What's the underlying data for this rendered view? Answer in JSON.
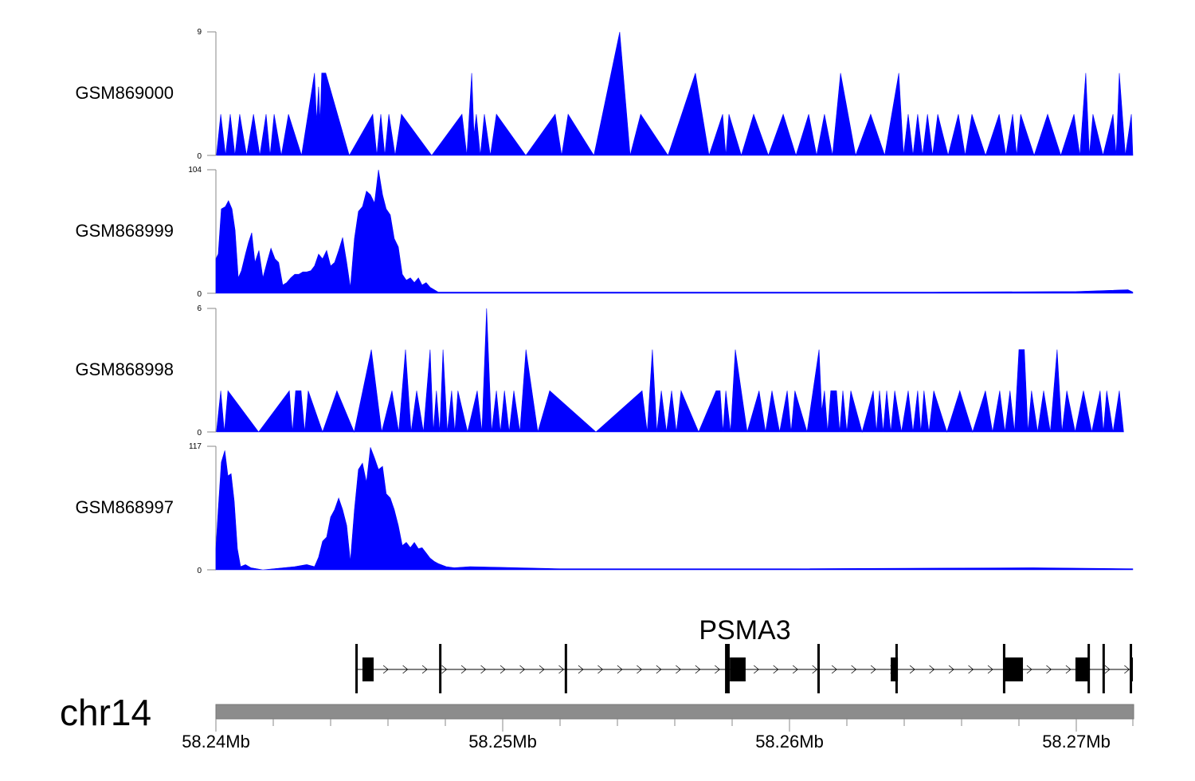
{
  "chart_data": {
    "type": "area",
    "x_origin_mb": 58.24,
    "x_unit": "kb offset from 58.24Mb",
    "xlim_kb": [
      0,
      32
    ],
    "fill_color": "#0000ff",
    "tracks": [
      {
        "name": "GSM869000",
        "ylim": [
          0,
          9
        ],
        "yticks": [
          "0",
          "9"
        ],
        "style": "peaks",
        "peaks": [
          [
            0.17,
            3
          ],
          [
            0.5,
            3
          ],
          [
            0.83,
            3
          ],
          [
            1.31,
            3
          ],
          [
            1.75,
            3
          ],
          [
            2.03,
            3
          ],
          [
            2.53,
            3
          ],
          [
            3.44,
            6
          ],
          [
            3.58,
            5
          ],
          [
            3.69,
            6
          ],
          [
            3.83,
            6
          ],
          [
            5.47,
            3
          ],
          [
            5.75,
            3
          ],
          [
            6.03,
            3
          ],
          [
            6.47,
            3
          ],
          [
            8.58,
            3
          ],
          [
            8.92,
            6
          ],
          [
            9.08,
            3
          ],
          [
            9.36,
            3
          ],
          [
            9.78,
            3
          ],
          [
            11.83,
            3
          ],
          [
            12.28,
            3
          ],
          [
            14.08,
            9
          ],
          [
            14.81,
            3
          ],
          [
            16.72,
            6
          ],
          [
            17.67,
            3
          ],
          [
            17.89,
            3
          ],
          [
            18.75,
            3
          ],
          [
            19.78,
            3
          ],
          [
            20.67,
            3
          ],
          [
            21.22,
            3
          ],
          [
            21.78,
            6
          ],
          [
            22.83,
            3
          ],
          [
            23.81,
            6
          ],
          [
            24.14,
            3
          ],
          [
            24.47,
            3
          ],
          [
            24.81,
            3
          ],
          [
            25.17,
            3
          ],
          [
            25.89,
            3
          ],
          [
            26.36,
            3
          ],
          [
            27.31,
            3
          ],
          [
            27.78,
            3
          ],
          [
            28.06,
            3
          ],
          [
            29.0,
            3
          ],
          [
            29.92,
            3
          ],
          [
            30.33,
            6
          ],
          [
            30.58,
            3
          ],
          [
            31.28,
            3
          ],
          [
            31.5,
            6
          ],
          [
            31.92,
            3
          ]
        ]
      },
      {
        "name": "GSM868999",
        "ylim": [
          0,
          104
        ],
        "yticks": [
          "0",
          "104"
        ],
        "style": "profile",
        "points": [
          [
            0,
            29
          ],
          [
            0.08,
            33
          ],
          [
            0.19,
            71
          ],
          [
            0.33,
            73
          ],
          [
            0.44,
            78
          ],
          [
            0.56,
            71
          ],
          [
            0.67,
            53
          ],
          [
            0.78,
            13
          ],
          [
            0.89,
            19
          ],
          [
            1.03,
            33
          ],
          [
            1.14,
            43
          ],
          [
            1.25,
            51
          ],
          [
            1.36,
            26
          ],
          [
            1.5,
            36
          ],
          [
            1.64,
            13
          ],
          [
            1.78,
            26
          ],
          [
            1.92,
            38
          ],
          [
            2.06,
            29
          ],
          [
            2.19,
            26
          ],
          [
            2.33,
            7
          ],
          [
            2.47,
            9
          ],
          [
            2.61,
            13
          ],
          [
            2.75,
            16
          ],
          [
            2.89,
            16
          ],
          [
            3.03,
            18
          ],
          [
            3.17,
            18
          ],
          [
            3.31,
            19
          ],
          [
            3.44,
            23
          ],
          [
            3.58,
            33
          ],
          [
            3.72,
            29
          ],
          [
            3.86,
            36
          ],
          [
            4.0,
            23
          ],
          [
            4.14,
            26
          ],
          [
            4.28,
            36
          ],
          [
            4.42,
            47
          ],
          [
            4.56,
            26
          ],
          [
            4.69,
            5
          ],
          [
            4.83,
            46
          ],
          [
            4.97,
            69
          ],
          [
            5.11,
            73
          ],
          [
            5.25,
            86
          ],
          [
            5.39,
            83
          ],
          [
            5.53,
            76
          ],
          [
            5.67,
            104
          ],
          [
            5.81,
            83
          ],
          [
            5.94,
            71
          ],
          [
            6.08,
            66
          ],
          [
            6.22,
            46
          ],
          [
            6.36,
            39
          ],
          [
            6.5,
            16
          ],
          [
            6.64,
            11
          ],
          [
            6.78,
            13
          ],
          [
            6.92,
            9
          ],
          [
            7.06,
            13
          ],
          [
            7.19,
            7
          ],
          [
            7.33,
            9
          ],
          [
            7.47,
            5
          ],
          [
            7.61,
            3
          ],
          [
            7.75,
            1
          ],
          [
            10,
            1
          ],
          [
            15,
            1
          ],
          [
            20,
            1
          ],
          [
            25,
            1
          ],
          [
            30,
            1.5
          ],
          [
            31.8,
            3
          ],
          [
            31.97,
            1
          ]
        ]
      },
      {
        "name": "GSM868998",
        "ylim": [
          0,
          6
        ],
        "yticks": [
          "0",
          "6"
        ],
        "style": "peaks",
        "peaks": [
          [
            0.17,
            2
          ],
          [
            0.42,
            2
          ],
          [
            2.56,
            2
          ],
          [
            2.78,
            2
          ],
          [
            2.97,
            2
          ],
          [
            3.22,
            2
          ],
          [
            4.22,
            2
          ],
          [
            5.42,
            4
          ],
          [
            6.14,
            2
          ],
          [
            6.61,
            4
          ],
          [
            7.0,
            2
          ],
          [
            7.47,
            4
          ],
          [
            7.69,
            2
          ],
          [
            7.92,
            4
          ],
          [
            8.22,
            2
          ],
          [
            8.44,
            2
          ],
          [
            9.11,
            2
          ],
          [
            9.44,
            6
          ],
          [
            9.78,
            2
          ],
          [
            10.06,
            2
          ],
          [
            10.39,
            2
          ],
          [
            10.81,
            4
          ],
          [
            11.64,
            2
          ],
          [
            14.86,
            2
          ],
          [
            15.22,
            4
          ],
          [
            15.53,
            2
          ],
          [
            15.89,
            2
          ],
          [
            16.22,
            2
          ],
          [
            17.44,
            2
          ],
          [
            17.58,
            2
          ],
          [
            17.78,
            2
          ],
          [
            18.11,
            4
          ],
          [
            18.94,
            2
          ],
          [
            19.39,
            2
          ],
          [
            19.92,
            2
          ],
          [
            20.19,
            2
          ],
          [
            21.03,
            4
          ],
          [
            21.22,
            2
          ],
          [
            21.44,
            2
          ],
          [
            21.64,
            2
          ],
          [
            21.86,
            2
          ],
          [
            22.14,
            2
          ],
          [
            22.92,
            2
          ],
          [
            23.14,
            2
          ],
          [
            23.39,
            2
          ],
          [
            23.67,
            2
          ],
          [
            24.14,
            2
          ],
          [
            24.47,
            2
          ],
          [
            24.69,
            2
          ],
          [
            25.03,
            2
          ],
          [
            25.94,
            2
          ],
          [
            26.83,
            2
          ],
          [
            27.33,
            2
          ],
          [
            27.69,
            2
          ],
          [
            28.0,
            4
          ],
          [
            28.19,
            4
          ],
          [
            28.44,
            2
          ],
          [
            28.86,
            2
          ],
          [
            29.33,
            4
          ],
          [
            29.67,
            2
          ],
          [
            30.25,
            2
          ],
          [
            30.83,
            2
          ],
          [
            31.06,
            2
          ],
          [
            31.5,
            2
          ]
        ]
      },
      {
        "name": "GSM868997",
        "ylim": [
          0,
          117
        ],
        "yticks": [
          "0",
          "117"
        ],
        "style": "profile",
        "points": [
          [
            0,
            20
          ],
          [
            0.08,
            57
          ],
          [
            0.19,
            102
          ],
          [
            0.31,
            113
          ],
          [
            0.42,
            89
          ],
          [
            0.53,
            91
          ],
          [
            0.64,
            65
          ],
          [
            0.75,
            20
          ],
          [
            0.86,
            3
          ],
          [
            1.03,
            5
          ],
          [
            1.22,
            2
          ],
          [
            1.64,
            0
          ],
          [
            2.75,
            3
          ],
          [
            3.17,
            5
          ],
          [
            3.44,
            3
          ],
          [
            3.58,
            12
          ],
          [
            3.72,
            27
          ],
          [
            3.86,
            31
          ],
          [
            4.0,
            50
          ],
          [
            4.14,
            57
          ],
          [
            4.28,
            68
          ],
          [
            4.42,
            57
          ],
          [
            4.56,
            42
          ],
          [
            4.69,
            8
          ],
          [
            4.83,
            57
          ],
          [
            4.97,
            95
          ],
          [
            5.11,
            101
          ],
          [
            5.25,
            83
          ],
          [
            5.39,
            116
          ],
          [
            5.53,
            106
          ],
          [
            5.67,
            95
          ],
          [
            5.81,
            98
          ],
          [
            5.94,
            72
          ],
          [
            6.08,
            68
          ],
          [
            6.22,
            57
          ],
          [
            6.36,
            42
          ],
          [
            6.5,
            23
          ],
          [
            6.64,
            26
          ],
          [
            6.78,
            21
          ],
          [
            6.92,
            26
          ],
          [
            7.06,
            20
          ],
          [
            7.19,
            21
          ],
          [
            7.33,
            16
          ],
          [
            7.47,
            11
          ],
          [
            7.61,
            8
          ],
          [
            7.75,
            6
          ],
          [
            8.03,
            3
          ],
          [
            8.31,
            2
          ],
          [
            8.86,
            3
          ],
          [
            12,
            1
          ],
          [
            20,
            1
          ],
          [
            28.5,
            2
          ],
          [
            31.97,
            1
          ]
        ]
      }
    ],
    "gene": {
      "name": "PSMA3",
      "strand": "+",
      "intron_span_kb": [
        4.89,
        32.0
      ],
      "exons_kb": [
        [
          5.11,
          5.5
        ],
        [
          17.92,
          18.47
        ],
        [
          23.53,
          23.78
        ],
        [
          27.47,
          28.14
        ],
        [
          29.97,
          30.47
        ],
        [
          31.89,
          32.0
        ]
      ],
      "exon_lines_kb": [
        4.89,
        7.81,
        12.19,
        17.78,
        17.86,
        21.0,
        23.72,
        27.47,
        30.42,
        30.94,
        31.89
      ]
    },
    "chromosome": "chr14",
    "x_axis": {
      "major_ticks_kb": [
        0,
        10,
        20,
        30
      ],
      "major_labels": [
        "58.24Mb",
        "58.25Mb",
        "58.26Mb",
        "58.27Mb"
      ],
      "minor_tick_step_kb": 2
    }
  }
}
